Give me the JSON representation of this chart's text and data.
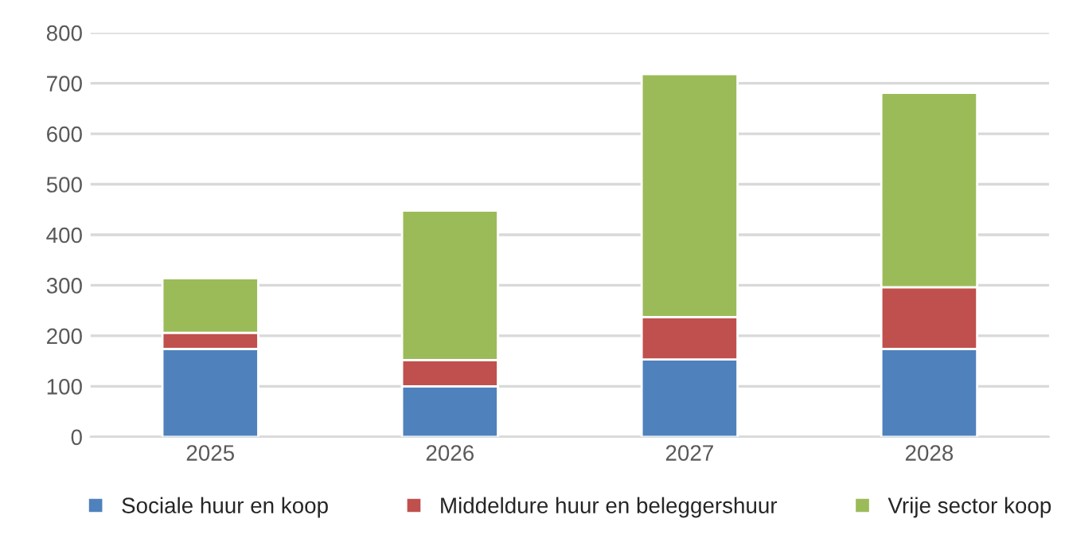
{
  "chart_data": {
    "type": "bar",
    "stacked": true,
    "categories": [
      "2025",
      "2026",
      "2027",
      "2028"
    ],
    "series": [
      {
        "name": "Sociale huur en koop",
        "color": "#4f81bd",
        "values": [
          174,
          100,
          153,
          174
        ]
      },
      {
        "name": "Middeldure huur en beleggershuur",
        "color": "#c0504d",
        "values": [
          32,
          52,
          84,
          122
        ]
      },
      {
        "name": "Vrije sector koop",
        "color": "#9bbb59",
        "values": [
          108,
          296,
          481,
          385
        ]
      }
    ],
    "ylim": [
      0,
      800
    ],
    "yticks": [
      0,
      100,
      200,
      300,
      400,
      500,
      600,
      700,
      800
    ],
    "grid": "y",
    "legend": "bottom"
  }
}
